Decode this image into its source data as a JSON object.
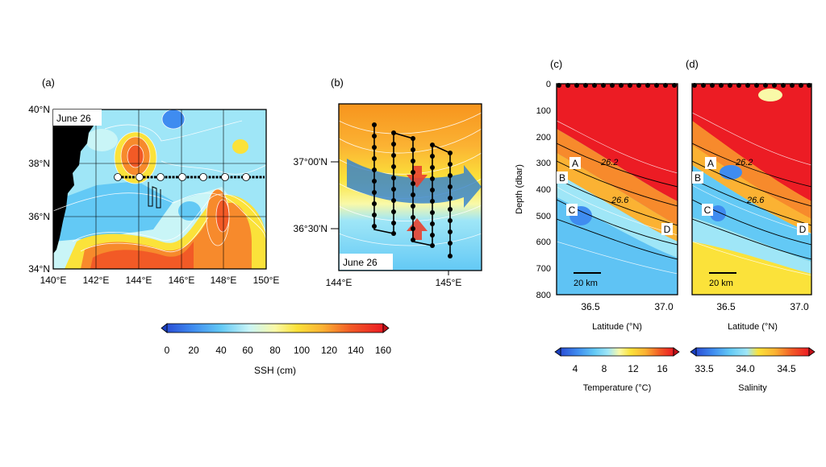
{
  "panels": {
    "a": {
      "label": "(a)",
      "date": "June 26",
      "x_ticks": [
        "140°E",
        "142°E",
        "144°E",
        "146°E",
        "148°E",
        "150°E"
      ],
      "y_ticks": [
        "40°N",
        "38°N",
        "36°N",
        "34°N"
      ]
    },
    "b": {
      "label": "(b)",
      "date": "June 26",
      "x_ticks": [
        "144°E",
        "145°E"
      ],
      "y_ticks": [
        "37°00'N",
        "36°30'N"
      ]
    },
    "c": {
      "label": "(c)",
      "ylabel": "Depth (dbar)",
      "xlabel": "Latitude (°N)",
      "y_ticks": [
        "0",
        "100",
        "200",
        "300",
        "400",
        "500",
        "600",
        "700",
        "800"
      ],
      "x_ticks": [
        "36.5",
        "37.0"
      ],
      "scale_bar": "20 km",
      "contour_labels": [
        "26.2",
        "26.6"
      ],
      "point_labels": [
        "A",
        "B",
        "C",
        "D"
      ]
    },
    "d": {
      "label": "(d)",
      "xlabel": "Latitude (°N)",
      "x_ticks": [
        "36.5",
        "37.0"
      ],
      "scale_bar": "20 km",
      "contour_labels": [
        "26.2",
        "26.6"
      ],
      "point_labels": [
        "A",
        "B",
        "C",
        "D"
      ]
    }
  },
  "colorbars": {
    "ssh": {
      "label": "SSH (cm)",
      "ticks": [
        "0",
        "20",
        "40",
        "60",
        "80",
        "100",
        "120",
        "140",
        "160"
      ]
    },
    "temperature": {
      "label": "Temperature (°C)",
      "ticks": [
        "4",
        "8",
        "12",
        "16"
      ]
    },
    "salinity": {
      "label": "Salinity",
      "ticks": [
        "33.5",
        "34.0",
        "34.5"
      ]
    }
  },
  "colors": {
    "palette": [
      "#2a4fd6",
      "#3f8cf0",
      "#63c9f5",
      "#9fe6f7",
      "#c9f5f7",
      "#f9f9a8",
      "#fbe23a",
      "#fbb233",
      "#f78a2c",
      "#f25a26",
      "#ec1c24"
    ],
    "land": "#000000",
    "arrow_blue": "#2f7fd0",
    "arrow_red": "#e8412f"
  }
}
